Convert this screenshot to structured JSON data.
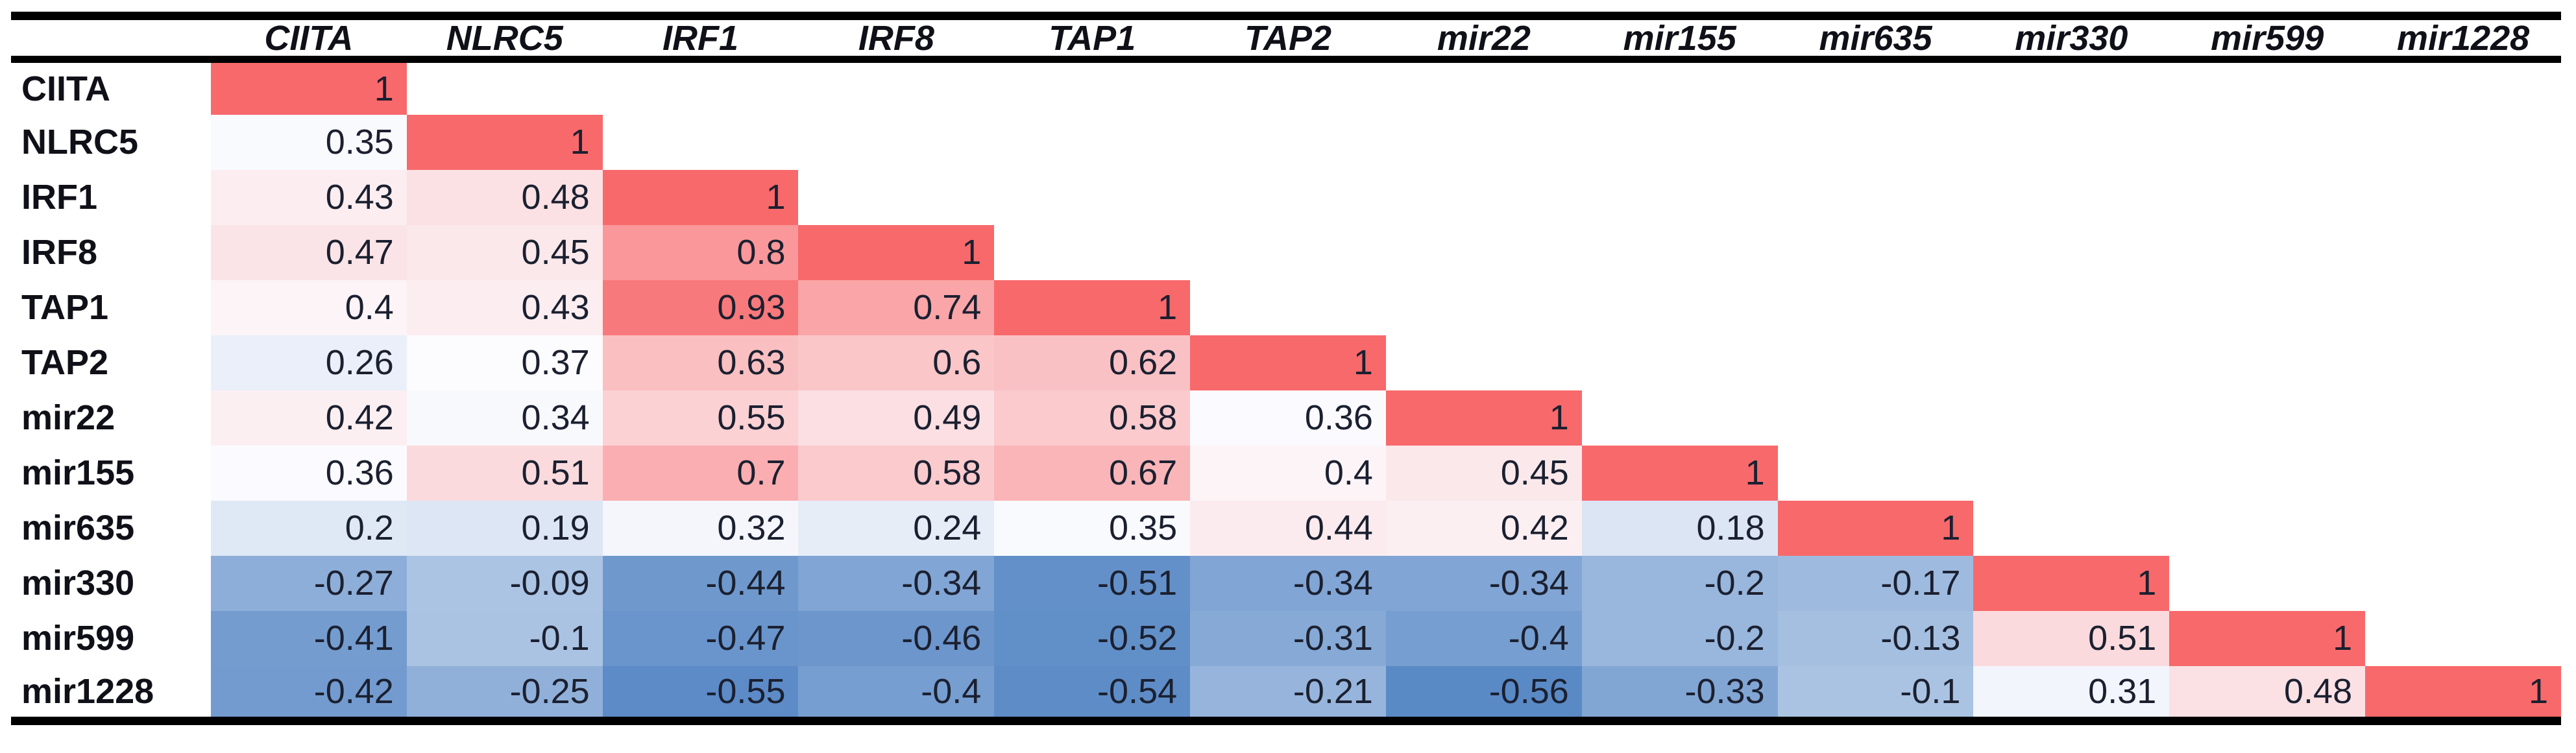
{
  "table": {
    "corner_label": ""
  },
  "chart_data": {
    "type": "heatmap",
    "description": "Lower-triangular correlation matrix with red (positive) to blue (negative) conditional-formatting color scale",
    "columns": [
      "CIITA",
      "NLRC5",
      "IRF1",
      "IRF8",
      "TAP1",
      "TAP2",
      "mir22",
      "mir155",
      "mir635",
      "mir330",
      "mir599",
      "mir1228"
    ],
    "rows": [
      "CIITA",
      "NLRC5",
      "IRF1",
      "IRF8",
      "TAP1",
      "TAP2",
      "mir22",
      "mir155",
      "mir635",
      "mir330",
      "mir599",
      "mir1228"
    ],
    "matrix": [
      [
        1
      ],
      [
        0.35,
        1
      ],
      [
        0.43,
        0.48,
        1
      ],
      [
        0.47,
        0.45,
        0.8,
        1
      ],
      [
        0.4,
        0.43,
        0.93,
        0.74,
        1
      ],
      [
        0.26,
        0.37,
        0.63,
        0.6,
        0.62,
        1
      ],
      [
        0.42,
        0.34,
        0.55,
        0.49,
        0.58,
        0.36,
        1
      ],
      [
        0.36,
        0.51,
        0.7,
        0.58,
        0.67,
        0.4,
        0.45,
        1
      ],
      [
        0.2,
        0.19,
        0.32,
        0.24,
        0.35,
        0.44,
        0.42,
        0.18,
        1
      ],
      [
        -0.27,
        -0.09,
        -0.44,
        -0.34,
        -0.51,
        -0.34,
        -0.34,
        -0.2,
        -0.17,
        1
      ],
      [
        -0.41,
        -0.1,
        -0.47,
        -0.46,
        -0.52,
        -0.31,
        -0.4,
        -0.2,
        -0.13,
        0.51,
        1
      ],
      [
        -0.42,
        -0.25,
        -0.55,
        -0.4,
        -0.54,
        -0.21,
        -0.56,
        -0.33,
        -0.1,
        0.31,
        0.48,
        1
      ]
    ],
    "value_range": [
      -0.56,
      1
    ],
    "color_scale": {
      "min_value": -0.56,
      "mid_value": 0.365,
      "max_value": 1,
      "min_color": "#5A8AC6",
      "mid_color": "#FCFCFF",
      "max_color": "#F8696B"
    },
    "border_color": "#000000",
    "grid": false,
    "legend": false
  }
}
